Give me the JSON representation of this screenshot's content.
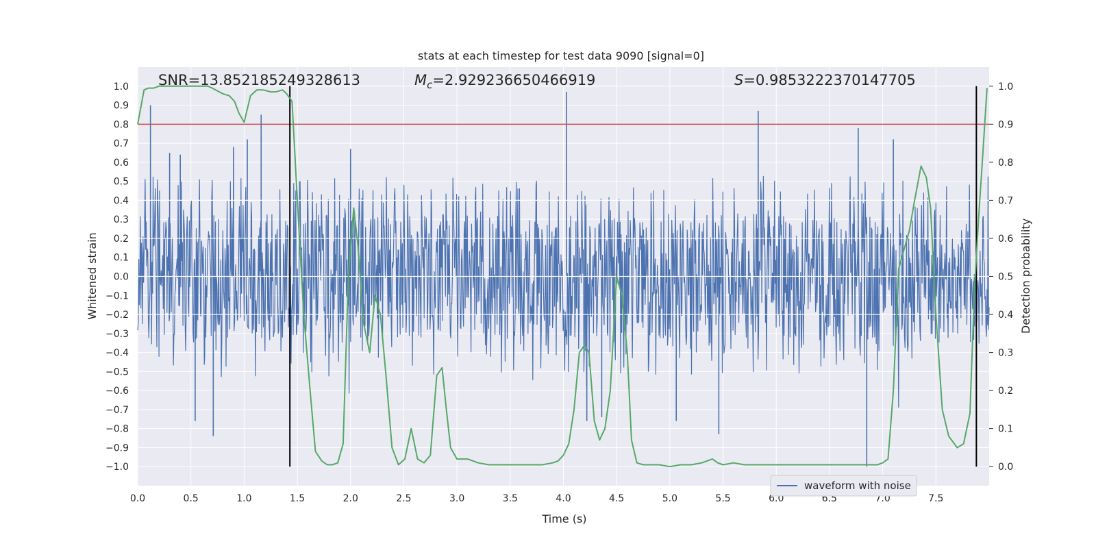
{
  "chart_data": {
    "type": "line",
    "title": "stats at each timestep for test data 9090 [signal=0]",
    "xlabel": "Time (s)",
    "ylabel_left": "Whitened strain",
    "ylabel_right": "Detection probability",
    "xlim": [
      0.0,
      8.0
    ],
    "ylim_left": [
      -1.1,
      1.1
    ],
    "ylim_right": [
      -0.05,
      1.05
    ],
    "x_ticks": [
      "0.0",
      "0.5",
      "1.0",
      "1.5",
      "2.0",
      "2.5",
      "3.0",
      "3.5",
      "4.0",
      "4.5",
      "5.0",
      "5.5",
      "6.0",
      "6.5",
      "7.0",
      "7.5"
    ],
    "y_ticks_left": [
      "1.0",
      "0.9",
      "0.8",
      "0.7",
      "0.6",
      "0.5",
      "0.4",
      "0.3",
      "0.2",
      "0.1",
      "0.0",
      "−0.1",
      "−0.2",
      "−0.3",
      "−0.4",
      "−0.5",
      "−0.6",
      "−0.7",
      "−0.8",
      "−0.9",
      "−1.0"
    ],
    "y_ticks_right": [
      "1.0",
      "0.9",
      "0.8",
      "0.7",
      "0.6",
      "0.5",
      "0.4",
      "0.3",
      "0.2",
      "0.1",
      "0.0"
    ],
    "annotations": {
      "snr": "SNR=13.852185249328613",
      "mc_symbol": "M",
      "mc_sub": "c",
      "mc_value": "=2.929236650466919",
      "s_symbol": "S",
      "s_value": "=0.9853222370147705"
    },
    "threshold": 0.9,
    "vertical_markers_s": [
      1.43,
      7.88
    ],
    "legend": [
      {
        "label": "waveform with noise",
        "color": "#4c72b0"
      }
    ],
    "series": [
      {
        "name": "waveform with noise",
        "color": "#4c72b0",
        "sample_count": 1600,
        "envelope": 0.33,
        "spikes": [
          {
            "t": 0.12,
            "v": 0.9
          },
          {
            "t": 0.3,
            "v": 0.65
          },
          {
            "t": 0.4,
            "v": 0.64
          },
          {
            "t": 0.54,
            "v": -0.76
          },
          {
            "t": 0.71,
            "v": -0.84
          },
          {
            "t": 0.9,
            "v": 0.68
          },
          {
            "t": 1.03,
            "v": 0.72
          },
          {
            "t": 1.16,
            "v": 0.85
          },
          {
            "t": 2.0,
            "v": 0.67
          },
          {
            "t": 4.03,
            "v": 0.97
          },
          {
            "t": 4.22,
            "v": -0.76
          },
          {
            "t": 4.36,
            "v": -0.74
          },
          {
            "t": 5.06,
            "v": -0.76
          },
          {
            "t": 5.46,
            "v": -0.83
          },
          {
            "t": 5.83,
            "v": 0.87
          },
          {
            "t": 6.77,
            "v": 0.78
          },
          {
            "t": 6.85,
            "v": -1.0
          },
          {
            "t": 7.1,
            "v": 0.72
          }
        ]
      },
      {
        "name": "detection probability",
        "color": "#55a868",
        "axis": "right",
        "points": [
          [
            0.0,
            0.9
          ],
          [
            0.06,
            0.99
          ],
          [
            0.1,
            0.995
          ],
          [
            0.15,
            0.995
          ],
          [
            0.2,
            1.0
          ],
          [
            0.3,
            1.0
          ],
          [
            0.4,
            1.0
          ],
          [
            0.5,
            1.0
          ],
          [
            0.6,
            1.0
          ],
          [
            0.66,
            1.0
          ],
          [
            0.7,
            0.995
          ],
          [
            0.8,
            0.98
          ],
          [
            0.86,
            0.975
          ],
          [
            0.91,
            0.96
          ],
          [
            0.95,
            0.93
          ],
          [
            1.0,
            0.905
          ],
          [
            1.06,
            0.975
          ],
          [
            1.12,
            0.99
          ],
          [
            1.18,
            0.99
          ],
          [
            1.25,
            0.985
          ],
          [
            1.3,
            0.985
          ],
          [
            1.36,
            0.99
          ],
          [
            1.4,
            0.98
          ],
          [
            1.45,
            0.96
          ],
          [
            1.5,
            0.7
          ],
          [
            1.56,
            0.4
          ],
          [
            1.62,
            0.2
          ],
          [
            1.67,
            0.04
          ],
          [
            1.73,
            0.015
          ],
          [
            1.78,
            0.005
          ],
          [
            1.83,
            0.005
          ],
          [
            1.88,
            0.01
          ],
          [
            1.93,
            0.06
          ],
          [
            1.98,
            0.5
          ],
          [
            2.03,
            0.68
          ],
          [
            2.07,
            0.58
          ],
          [
            2.12,
            0.38
          ],
          [
            2.18,
            0.3
          ],
          [
            2.23,
            0.45
          ],
          [
            2.28,
            0.4
          ],
          [
            2.33,
            0.25
          ],
          [
            2.39,
            0.05
          ],
          [
            2.45,
            0.005
          ],
          [
            2.51,
            0.02
          ],
          [
            2.57,
            0.1
          ],
          [
            2.63,
            0.02
          ],
          [
            2.69,
            0.01
          ],
          [
            2.75,
            0.03
          ],
          [
            2.81,
            0.24
          ],
          [
            2.86,
            0.26
          ],
          [
            2.9,
            0.15
          ],
          [
            2.94,
            0.05
          ],
          [
            3.0,
            0.02
          ],
          [
            3.1,
            0.02
          ],
          [
            3.2,
            0.01
          ],
          [
            3.3,
            0.005
          ],
          [
            3.4,
            0.005
          ],
          [
            3.5,
            0.005
          ],
          [
            3.6,
            0.005
          ],
          [
            3.7,
            0.005
          ],
          [
            3.8,
            0.005
          ],
          [
            3.9,
            0.01
          ],
          [
            3.95,
            0.015
          ],
          [
            4.0,
            0.03
          ],
          [
            4.05,
            0.06
          ],
          [
            4.1,
            0.15
          ],
          [
            4.15,
            0.3
          ],
          [
            4.2,
            0.32
          ],
          [
            4.24,
            0.3
          ],
          [
            4.29,
            0.12
          ],
          [
            4.34,
            0.07
          ],
          [
            4.39,
            0.1
          ],
          [
            4.44,
            0.2
          ],
          [
            4.5,
            0.5
          ],
          [
            4.55,
            0.45
          ],
          [
            4.6,
            0.3
          ],
          [
            4.64,
            0.07
          ],
          [
            4.69,
            0.01
          ],
          [
            4.75,
            0.005
          ],
          [
            4.8,
            0.005
          ],
          [
            4.9,
            0.005
          ],
          [
            5.0,
            0.0
          ],
          [
            5.1,
            0.005
          ],
          [
            5.2,
            0.005
          ],
          [
            5.3,
            0.01
          ],
          [
            5.4,
            0.02
          ],
          [
            5.45,
            0.01
          ],
          [
            5.5,
            0.005
          ],
          [
            5.6,
            0.01
          ],
          [
            5.7,
            0.005
          ],
          [
            5.8,
            0.005
          ],
          [
            5.9,
            0.005
          ],
          [
            6.0,
            0.005
          ],
          [
            6.2,
            0.005
          ],
          [
            6.4,
            0.005
          ],
          [
            6.6,
            0.005
          ],
          [
            6.8,
            0.005
          ],
          [
            6.95,
            0.005
          ],
          [
            7.0,
            0.01
          ],
          [
            7.05,
            0.02
          ],
          [
            7.1,
            0.2
          ],
          [
            7.15,
            0.52
          ],
          [
            7.2,
            0.57
          ],
          [
            7.25,
            0.62
          ],
          [
            7.3,
            0.7
          ],
          [
            7.36,
            0.79
          ],
          [
            7.41,
            0.76
          ],
          [
            7.45,
            0.68
          ],
          [
            7.5,
            0.4
          ],
          [
            7.56,
            0.15
          ],
          [
            7.62,
            0.08
          ],
          [
            7.7,
            0.05
          ],
          [
            7.76,
            0.06
          ],
          [
            7.82,
            0.14
          ],
          [
            7.86,
            0.45
          ],
          [
            7.9,
            0.65
          ],
          [
            7.94,
            0.82
          ],
          [
            7.98,
            0.995
          ]
        ]
      }
    ]
  }
}
